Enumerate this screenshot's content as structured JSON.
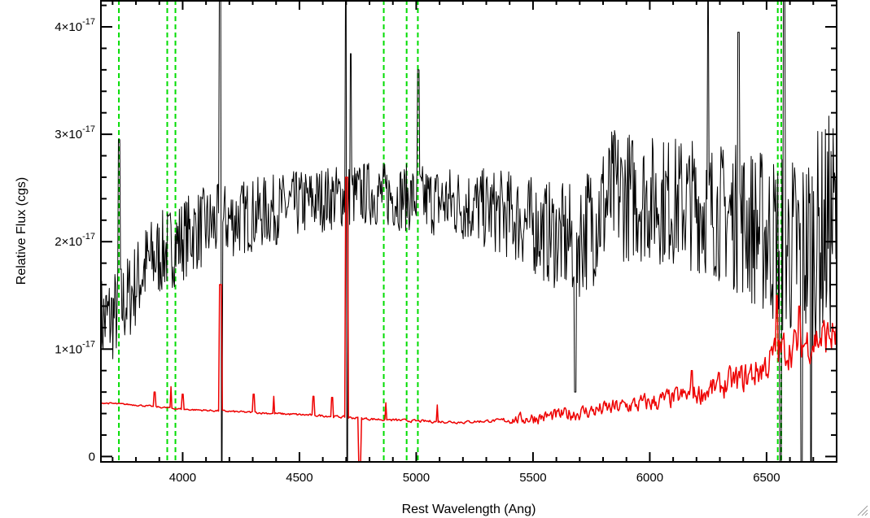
{
  "chart_data": {
    "type": "line",
    "xlabel": "Rest Wavelength (Ang)",
    "ylabel": "Relative Flux (cgs)",
    "xlim": [
      3650,
      6800
    ],
    "ylim": [
      -0.05,
      4.25
    ],
    "y_exponent_label": "×10",
    "y_exponent": "-17",
    "x_ticks": [
      {
        "value": 4000,
        "label": "4000"
      },
      {
        "value": 4500,
        "label": "4500"
      },
      {
        "value": 5000,
        "label": "5000"
      },
      {
        "value": 5500,
        "label": "5500"
      },
      {
        "value": 6000,
        "label": "6000"
      },
      {
        "value": 6500,
        "label": "6500"
      }
    ],
    "y_ticks": [
      {
        "value": 0,
        "mantissa": "0"
      },
      {
        "value": 1,
        "mantissa": "1"
      },
      {
        "value": 2,
        "mantissa": "2"
      },
      {
        "value": 3,
        "mantissa": "3"
      },
      {
        "value": 4,
        "mantissa": "4"
      }
    ],
    "x_minor_step": 100,
    "y_minor_step": 0.2,
    "grid": false,
    "legend": "none",
    "reference_lines": {
      "color": "#00dd00",
      "style": "dashed",
      "x": [
        3727,
        3934,
        3969,
        4861,
        4959,
        5007,
        6548,
        6563
      ]
    },
    "series": [
      {
        "color": "#000000",
        "width": 1,
        "note_noise": "spectrum",
        "continuum": [
          [
            3650,
            1.25
          ],
          [
            3700,
            1.3
          ],
          [
            3760,
            1.45
          ],
          [
            3850,
            1.8
          ],
          [
            3950,
            1.95
          ],
          [
            4050,
            2.1
          ],
          [
            4200,
            2.2
          ],
          [
            4400,
            2.3
          ],
          [
            4600,
            2.4
          ],
          [
            4800,
            2.45
          ],
          [
            5000,
            2.4
          ],
          [
            5200,
            2.35
          ],
          [
            5400,
            2.25
          ],
          [
            5550,
            2.1
          ],
          [
            5650,
            2.0
          ],
          [
            5700,
            2.05
          ],
          [
            5850,
            2.45
          ],
          [
            6000,
            2.4
          ],
          [
            6200,
            2.35
          ],
          [
            6400,
            2.2
          ],
          [
            6550,
            2.0
          ],
          [
            6650,
            1.9
          ],
          [
            6800,
            2.2
          ]
        ],
        "noise": [
          [
            3650,
            0.45
          ],
          [
            3900,
            0.4
          ],
          [
            4100,
            0.38
          ],
          [
            4400,
            0.33
          ],
          [
            4700,
            0.3
          ],
          [
            5000,
            0.32
          ],
          [
            5300,
            0.38
          ],
          [
            5600,
            0.5
          ],
          [
            5800,
            0.65
          ],
          [
            6000,
            0.6
          ],
          [
            6300,
            0.65
          ],
          [
            6500,
            0.8
          ],
          [
            6800,
            1.1
          ]
        ],
        "features": [
          {
            "x": 3728,
            "y": 2.95,
            "w": 3
          },
          {
            "x": 4160,
            "y": 4.3,
            "w": 4
          },
          {
            "x": 4168,
            "y": -0.05,
            "w": 3
          },
          {
            "x": 4700,
            "y": 4.3,
            "w": 3
          },
          {
            "x": 4705,
            "y": -0.05,
            "w": 3
          },
          {
            "x": 4720,
            "y": 3.75,
            "w": 3
          },
          {
            "x": 5008,
            "y": 3.6,
            "w": 4
          },
          {
            "x": 5680,
            "y": 0.6,
            "w": 4
          },
          {
            "x": 6250,
            "y": 4.25,
            "w": 3
          },
          {
            "x": 6380,
            "y": 3.95,
            "w": 3
          },
          {
            "x": 6560,
            "y": -0.05,
            "w": 3
          },
          {
            "x": 6575,
            "y": 4.3,
            "w": 3
          },
          {
            "x": 6650,
            "y": -0.05,
            "w": 3
          },
          {
            "x": 6690,
            "y": -0.05,
            "w": 3
          }
        ]
      },
      {
        "color": "#ee0000",
        "width": 1.5,
        "note_noise": "error spectrum",
        "continuum": [
          [
            3650,
            0.5
          ],
          [
            3800,
            0.48
          ],
          [
            4000,
            0.44
          ],
          [
            4200,
            0.42
          ],
          [
            4400,
            0.4
          ],
          [
            4600,
            0.38
          ],
          [
            4800,
            0.35
          ],
          [
            5000,
            0.33
          ],
          [
            5200,
            0.32
          ],
          [
            5400,
            0.34
          ],
          [
            5600,
            0.38
          ],
          [
            5800,
            0.44
          ],
          [
            6000,
            0.5
          ],
          [
            6200,
            0.58
          ],
          [
            6400,
            0.72
          ],
          [
            6500,
            0.85
          ],
          [
            6550,
            0.98
          ],
          [
            6650,
            1.05
          ],
          [
            6800,
            1.15
          ]
        ],
        "noise": [
          [
            3650,
            0.01
          ],
          [
            5350,
            0.02
          ],
          [
            5450,
            0.08
          ],
          [
            5700,
            0.1
          ],
          [
            6200,
            0.15
          ],
          [
            6500,
            0.25
          ],
          [
            6800,
            0.3
          ]
        ],
        "features": [
          {
            "x": 3880,
            "y": 0.6,
            "w": 3
          },
          {
            "x": 3950,
            "y": 0.65,
            "w": 3
          },
          {
            "x": 4000,
            "y": 0.58,
            "w": 3
          },
          {
            "x": 4162,
            "y": 1.6,
            "w": 4
          },
          {
            "x": 4305,
            "y": 0.58,
            "w": 3
          },
          {
            "x": 4390,
            "y": 0.56,
            "w": 3
          },
          {
            "x": 4560,
            "y": 0.56,
            "w": 3
          },
          {
            "x": 4640,
            "y": 0.55,
            "w": 3
          },
          {
            "x": 4702,
            "y": 2.6,
            "w": 4
          },
          {
            "x": 4758,
            "y": -0.05,
            "w": 4
          },
          {
            "x": 4870,
            "y": 0.5,
            "w": 3
          },
          {
            "x": 5090,
            "y": 0.48,
            "w": 3
          },
          {
            "x": 6180,
            "y": 0.8,
            "w": 3
          },
          {
            "x": 6545,
            "y": 1.5,
            "w": 3
          },
          {
            "x": 6640,
            "y": 1.4,
            "w": 3
          }
        ]
      }
    ]
  }
}
